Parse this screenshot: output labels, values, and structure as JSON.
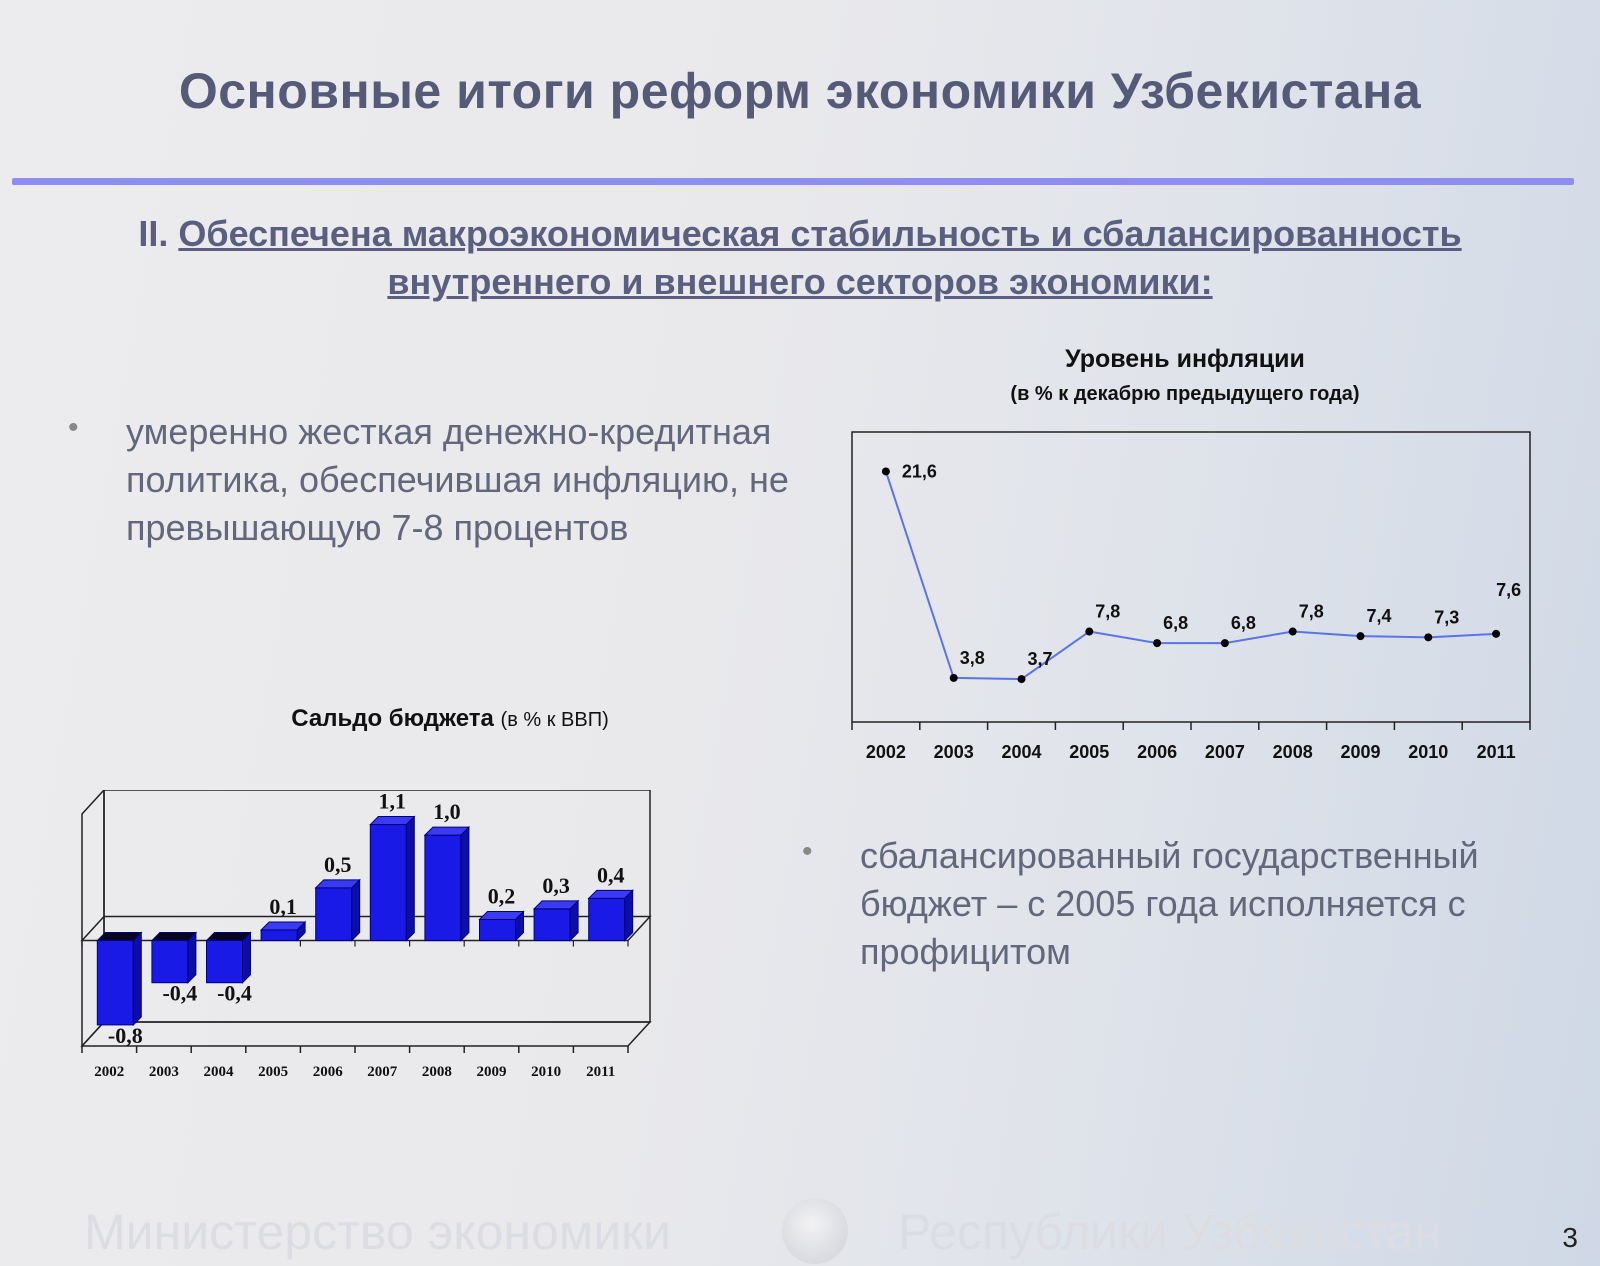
{
  "slide": {
    "title": "Основные итоги реформ экономики Узбекистана",
    "subtitle_prefix": "II. ",
    "subtitle_line1": "Обеспечена макроэкономическая стабильность и сбалансированность",
    "subtitle_line2": "внутреннего и внешнего секторов экономики:",
    "bullet1": "умеренно жесткая денежно-кредитная политика, обеспечившая инфляцию, не превышающую 7-8 процентов",
    "bullet2": "сбалансированный государственный бюджет – с 2005 года исполняется с профицитом",
    "footer_left": "Министерство экономики",
    "footer_right": "Республики Узбекистан",
    "page_number": "3"
  },
  "chart_data": [
    {
      "type": "line",
      "title": "Уровень инфляции",
      "subtitle": "(в % к декабрю предыдущего года)",
      "categories": [
        "2002",
        "2003",
        "2004",
        "2005",
        "2006",
        "2007",
        "2008",
        "2009",
        "2010",
        "2011"
      ],
      "values": [
        21.6,
        3.8,
        3.7,
        7.8,
        6.8,
        6.8,
        7.8,
        7.4,
        7.3,
        7.6
      ],
      "value_labels": [
        "21,6",
        "3,8",
        "3,7",
        "7,8",
        "6,8",
        "6,8",
        "7,8",
        "7,4",
        "7,3",
        "7,6"
      ],
      "ylim": [
        0,
        25
      ],
      "grid": false,
      "line_color": "#5b73e8",
      "marker_color": "#000000"
    },
    {
      "type": "bar",
      "title": "Сальдо бюджета",
      "subtitle": "(в % к ВВП)",
      "categories": [
        "2002",
        "2003",
        "2004",
        "2005",
        "2006",
        "2007",
        "2008",
        "2009",
        "2010",
        "2011"
      ],
      "values": [
        -0.8,
        -0.4,
        -0.4,
        0.1,
        0.5,
        1.1,
        1.0,
        0.2,
        0.3,
        0.4
      ],
      "value_labels": [
        "-0,8",
        "-0,4",
        "-0,4",
        "0,1",
        "0,5",
        "1,1",
        "1,0",
        "0,2",
        "0,3",
        "0,4"
      ],
      "ylim": [
        -1.0,
        1.2
      ],
      "grid": false,
      "bar_color": "#1a1ae6",
      "negative_top_color": "#050520"
    }
  ]
}
